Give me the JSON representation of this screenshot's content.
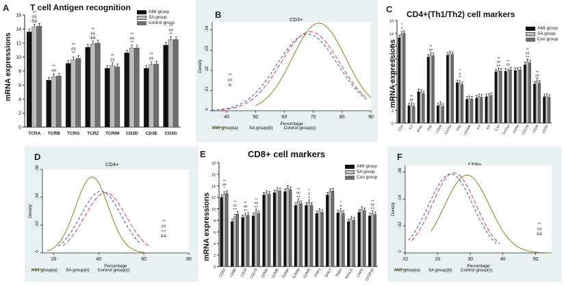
{
  "chart_data": [
    {
      "id": "A",
      "panel_label": "A",
      "type": "bar",
      "title": "T cell Antigen recognition",
      "ylabel": "mRNA expressions",
      "ylim": [
        0,
        16
      ],
      "yticks": [
        "0",
        "2",
        "4",
        "6",
        "8",
        "10",
        "12",
        "14",
        "16"
      ],
      "categories": [
        "TCRA",
        "TCRB",
        "TCRG",
        "TCRZ",
        "TCRIM",
        "CD3D",
        "CD3E",
        "CD3G"
      ],
      "series": [
        {
          "name": "AMI group",
          "color": "#111111",
          "values": [
            13.6,
            6.7,
            9.1,
            11.4,
            8.4,
            10.6,
            8.4,
            11.7
          ]
        },
        {
          "name": "SA group",
          "color": "#bdbdbd",
          "values": [
            14.3,
            7.2,
            9.6,
            11.9,
            8.8,
            11.3,
            8.9,
            12.5
          ]
        },
        {
          "name": "control group",
          "color": "#6e6e6e",
          "values": [
            14.4,
            7.3,
            9.8,
            12.0,
            8.6,
            11.3,
            9.0,
            12.5
          ]
        }
      ],
      "annotations": [
        {
          "category": "TCRA",
          "lines": [
            "**",
            "##",
            "&&"
          ]
        },
        {
          "category": "TCRB",
          "lines": [
            "**",
            "##"
          ]
        },
        {
          "category": "TCRG",
          "lines": [
            "**",
            "##",
            "**"
          ]
        },
        {
          "category": "TCRZ",
          "lines": [
            "**",
            "##",
            "&&"
          ]
        },
        {
          "category": "TCRIM",
          "lines": [
            "**",
            "##"
          ]
        },
        {
          "category": "CD3D",
          "lines": [
            "**",
            "##",
            "**"
          ]
        },
        {
          "category": "CD3E",
          "lines": [
            "**",
            "##"
          ]
        },
        {
          "category": "CD3G",
          "lines": [
            "**",
            "##",
            "**"
          ]
        }
      ]
    },
    {
      "id": "B",
      "panel_label": "B",
      "type": "line",
      "title": "CD3+",
      "xlabel": "Percentage",
      "ylabel": "Density",
      "xlim": [
        35,
        90
      ],
      "ylim": [
        0,
        0.044
      ],
      "xticks": [
        "40",
        "50",
        "60",
        "70",
        "80",
        "90"
      ],
      "yticks": [
        "0",
        ".01",
        ".02",
        ".03",
        ".04"
      ],
      "series": [
        {
          "name": "AMI group(a)",
          "color": "#3a5fa8",
          "dash": "4,3",
          "mean": 68,
          "sd": 10.5,
          "range": [
            35,
            89
          ]
        },
        {
          "name": "SA group(b)",
          "color": "#c0505e",
          "dash": "6,3",
          "mean": 69,
          "sd": 10.2,
          "range": [
            38,
            88
          ]
        },
        {
          "name": "Control group(c)",
          "color": "#8a8a3a",
          "dash": "",
          "mean": 72,
          "sd": 9.2,
          "range": [
            50,
            90
          ]
        }
      ],
      "annotation": [
        "**",
        "##",
        "&"
      ]
    },
    {
      "id": "C",
      "panel_label": "C",
      "type": "bar",
      "title": "CD4+(Th1/Th2)  cell markers",
      "ylabel": "mRNA expressions",
      "ylim": [
        0,
        16
      ],
      "yticks": [
        "0",
        "2",
        "4",
        "6",
        "8",
        "10",
        "12",
        "14",
        "16"
      ],
      "categories": [
        "CD4",
        "IL2",
        "IFNG",
        "TNF",
        "CD69",
        "CD154",
        "FAS",
        "CD40B",
        "IL4",
        "IL6",
        "IL10",
        "GATA3",
        "CCR4",
        "CD278",
        "CD28",
        "CCR3"
      ],
      "series": [
        {
          "name": "AMI group",
          "color": "#111111",
          "values": [
            13.3,
            2.7,
            4.9,
            10.3,
            2.7,
            10.6,
            6.3,
            3.7,
            3.9,
            4.1,
            8.0,
            8.1,
            8.2,
            9.1,
            6.1,
            4.1
          ]
        },
        {
          "name": "SA group",
          "color": "#bdbdbd",
          "values": [
            13.9,
            2.8,
            4.8,
            10.6,
            2.9,
            10.8,
            6.2,
            3.8,
            4.1,
            4.2,
            8.2,
            8.0,
            8.2,
            9.6,
            6.6,
            4.2
          ]
        },
        {
          "name": "Con group",
          "color": "#6e6e6e",
          "values": [
            14.0,
            2.6,
            4.6,
            10.5,
            2.6,
            10.7,
            6.0,
            3.7,
            4.0,
            4.3,
            8.1,
            8.3,
            8.3,
            9.4,
            6.2,
            4.0
          ]
        }
      ],
      "annotations": [
        {
          "category": "CD4",
          "lines": [
            "*",
            "#"
          ]
        },
        {
          "category": "IL2",
          "lines": [
            "**",
            "##"
          ]
        },
        {
          "category": "TNF",
          "lines": [
            "**",
            "##"
          ]
        },
        {
          "category": "FAS",
          "lines": [
            "*",
            "#",
            "**"
          ]
        },
        {
          "category": "IL10",
          "lines": [
            "**",
            "##",
            "++"
          ]
        },
        {
          "category": "GATA3",
          "lines": [
            "**",
            "##"
          ]
        },
        {
          "category": "CD278",
          "lines": [
            "**",
            "##",
            "++"
          ]
        },
        {
          "category": "CD28",
          "lines": [
            "**",
            "##"
          ]
        }
      ]
    },
    {
      "id": "D",
      "panel_label": "D",
      "type": "line",
      "title": "CD4+",
      "xlabel": "Percentage",
      "ylabel": "Density",
      "xlim": [
        15,
        80
      ],
      "ylim": [
        0,
        0.06
      ],
      "xticks": [
        "20",
        "40",
        "60",
        "80"
      ],
      "yticks": [
        "0",
        ".02",
        ".04",
        ".06"
      ],
      "series": [
        {
          "name": "AMI group(a)",
          "color": "#3a5fa8",
          "dash": "4,3",
          "mean": 41,
          "sd": 9,
          "range": [
            22,
            58
          ]
        },
        {
          "name": "SA group(b)",
          "color": "#c0505e",
          "dash": "6,3",
          "mean": 43,
          "sd": 9.2,
          "range": [
            24,
            63
          ]
        },
        {
          "name": "Control group(c)",
          "color": "#8a8a3a",
          "dash": "",
          "mean": 37,
          "sd": 7.3,
          "range": [
            17,
            60
          ]
        }
      ],
      "annotation": [
        "**",
        "##",
        "++",
        "&&"
      ]
    },
    {
      "id": "E",
      "panel_label": "E",
      "type": "bar",
      "title": "CD8+ cell markers",
      "ylabel": "mRNA expressions",
      "ylim": [
        0,
        18
      ],
      "yticks": [
        "0",
        "2",
        "4",
        "6",
        "8",
        "10",
        "12",
        "14",
        "16",
        "18"
      ],
      "categories": [
        "CD8A",
        "CD8B",
        "CD28",
        "CD279",
        "GZMA",
        "GZMB",
        "GZMH",
        "GZMM",
        "GZMK",
        "PRF1",
        "GNLY",
        "TNFA",
        "FASLG",
        "CAP4",
        "CASP10"
      ],
      "series": [
        {
          "name": "AMI group",
          "color": "#111111",
          "values": [
            12.0,
            7.8,
            8.5,
            8.8,
            12.4,
            12.8,
            13.0,
            10.6,
            10.6,
            9.2,
            12.4,
            9.3,
            7.8,
            9.4,
            8.8
          ]
        },
        {
          "name": "SA group",
          "color": "#bdbdbd",
          "values": [
            12.5,
            8.6,
            8.8,
            9.5,
            12.7,
            13.2,
            13.6,
            11.3,
            11.1,
            9.6,
            13.0,
            9.6,
            8.2,
            9.9,
            9.2
          ]
        },
        {
          "name": "Con group",
          "color": "#6e6e6e",
          "values": [
            12.7,
            9.1,
            8.9,
            9.2,
            12.5,
            13.1,
            13.3,
            10.9,
            10.6,
            9.4,
            13.1,
            9.2,
            8.0,
            9.7,
            9.0
          ]
        }
      ],
      "annotations": [
        {
          "category": "CD8A",
          "lines": [
            "**",
            "##",
            "*"
          ]
        },
        {
          "category": "CD8B",
          "lines": [
            "**",
            "##",
            "++"
          ]
        },
        {
          "category": "CD28",
          "lines": [
            "**",
            "##",
            "++"
          ]
        },
        {
          "category": "CD279",
          "lines": [
            "**",
            "##",
            "++"
          ]
        },
        {
          "category": "GZMM",
          "lines": [
            "**",
            "##",
            "++"
          ]
        },
        {
          "category": "GZMK",
          "lines": [
            "*",
            "#",
            "+"
          ]
        },
        {
          "category": "TNFA",
          "lines": [
            "*",
            "#"
          ]
        },
        {
          "category": "CASP10",
          "lines": [
            "**",
            "##",
            "++"
          ]
        }
      ]
    },
    {
      "id": "F",
      "panel_label": "F",
      "type": "line",
      "title": "CD8+",
      "xlabel": "Percentage",
      "ylabel": "Density",
      "xlim": [
        10,
        55
      ],
      "ylim": [
        0,
        0.065
      ],
      "xticks": [
        "10",
        "20",
        "30",
        "40",
        "50"
      ],
      "yticks": [
        "0",
        ".02",
        ".04",
        ".06"
      ],
      "series": [
        {
          "name": "AMI group(a)",
          "color": "#3a5fa8",
          "dash": "4,3",
          "mean": 24,
          "sd": 6.8,
          "range": [
            11,
            38
          ]
        },
        {
          "name": "SA group(b)",
          "color": "#c0505e",
          "dash": "6,3",
          "mean": 25,
          "sd": 6.7,
          "range": [
            12,
            39
          ]
        },
        {
          "name": "Control group(c)",
          "color": "#8a8a3a",
          "dash": "",
          "mean": 29,
          "sd": 6.9,
          "range": [
            18,
            55
          ]
        }
      ],
      "annotation": [
        "**",
        "##",
        "&&"
      ]
    }
  ]
}
